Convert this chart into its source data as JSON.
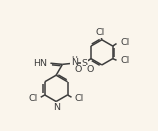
{
  "bg_color": "#faf5ec",
  "bond_color": "#3d3d3d",
  "text_color": "#3d3d3d",
  "bond_width": 1.1,
  "font_size": 6.8,
  "figsize": [
    1.58,
    1.31
  ],
  "dpi": 100,
  "xlim": [
    -0.05,
    1.05
  ],
  "ylim": [
    -0.05,
    1.05
  ]
}
